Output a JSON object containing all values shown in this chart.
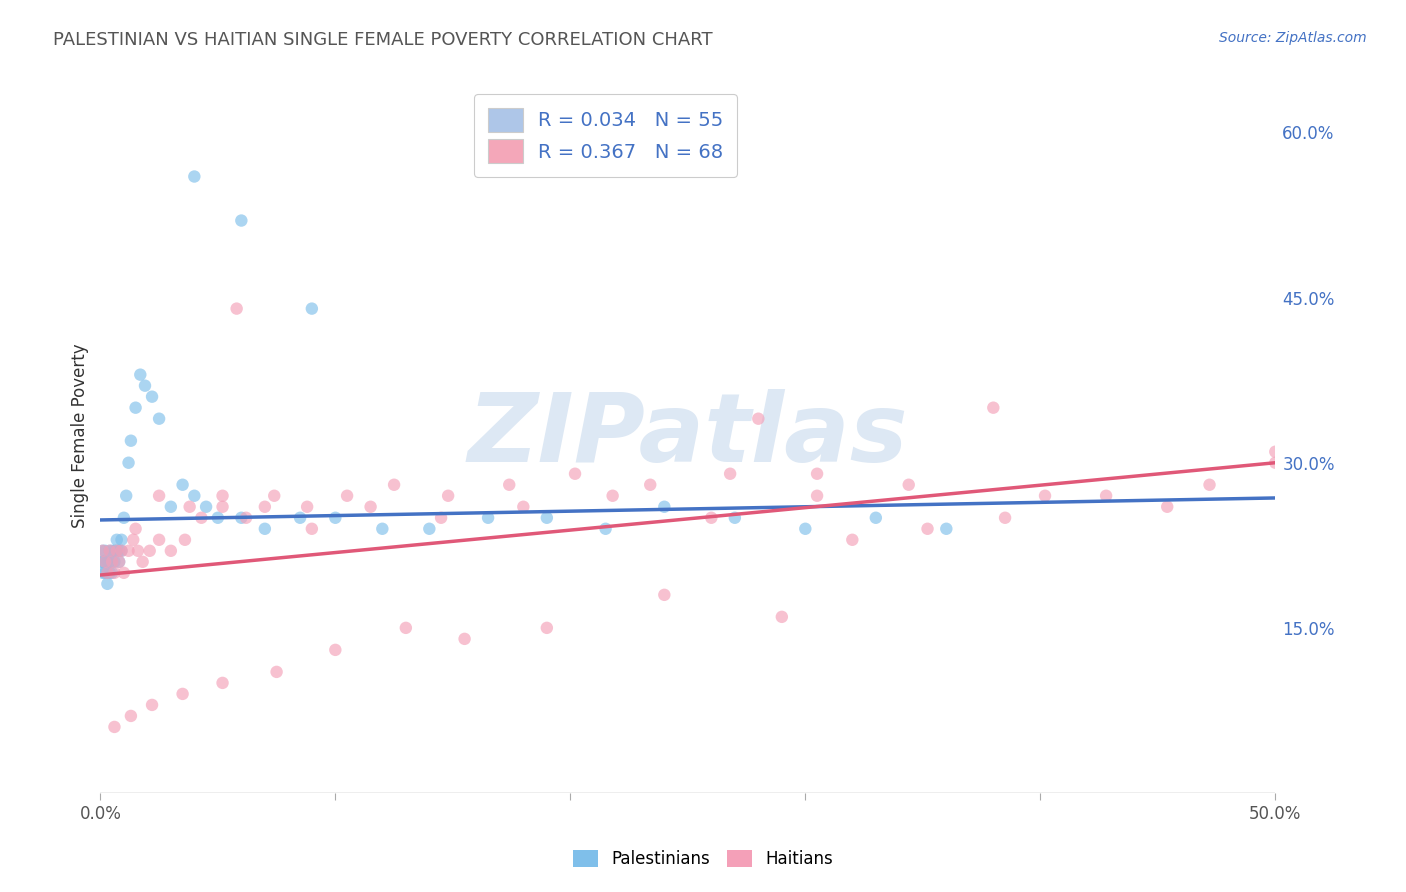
{
  "title": "PALESTINIAN VS HAITIAN SINGLE FEMALE POVERTY CORRELATION CHART",
  "source": "Source: ZipAtlas.com",
  "ylabel": "Single Female Poverty",
  "ylabel_right_labels": [
    "15.0%",
    "30.0%",
    "45.0%",
    "60.0%"
  ],
  "ylabel_right_values": [
    0.15,
    0.3,
    0.45,
    0.6
  ],
  "xlim": [
    0.0,
    0.5
  ],
  "ylim": [
    0.0,
    0.65
  ],
  "watermark": "ZIPatlas",
  "pal_color": "#7fbfea",
  "hai_color": "#f4a0b8",
  "pal_scatter_alpha": 0.65,
  "hai_scatter_alpha": 0.65,
  "pal_marker_size": 80,
  "hai_marker_size": 80,
  "palestinians_x": [
    0.001,
    0.001,
    0.001,
    0.001,
    0.002,
    0.002,
    0.002,
    0.003,
    0.003,
    0.003,
    0.004,
    0.004,
    0.004,
    0.005,
    0.005,
    0.005,
    0.006,
    0.006,
    0.007,
    0.007,
    0.008,
    0.008,
    0.009,
    0.009,
    0.01,
    0.011,
    0.012,
    0.013,
    0.015,
    0.017,
    0.019,
    0.022,
    0.025,
    0.03,
    0.035,
    0.04,
    0.045,
    0.05,
    0.06,
    0.07,
    0.085,
    0.1,
    0.12,
    0.14,
    0.165,
    0.19,
    0.215,
    0.24,
    0.27,
    0.3,
    0.33,
    0.36,
    0.04,
    0.06,
    0.09
  ],
  "palestinians_y": [
    0.2,
    0.21,
    0.21,
    0.22,
    0.2,
    0.21,
    0.22,
    0.19,
    0.2,
    0.21,
    0.2,
    0.21,
    0.22,
    0.2,
    0.21,
    0.22,
    0.21,
    0.22,
    0.22,
    0.23,
    0.21,
    0.22,
    0.22,
    0.23,
    0.25,
    0.27,
    0.3,
    0.32,
    0.35,
    0.38,
    0.37,
    0.36,
    0.34,
    0.26,
    0.28,
    0.27,
    0.26,
    0.25,
    0.25,
    0.24,
    0.25,
    0.25,
    0.24,
    0.24,
    0.25,
    0.25,
    0.24,
    0.26,
    0.25,
    0.24,
    0.25,
    0.24,
    0.56,
    0.52,
    0.44
  ],
  "haitians_x": [
    0.001,
    0.002,
    0.003,
    0.004,
    0.005,
    0.006,
    0.007,
    0.008,
    0.009,
    0.01,
    0.012,
    0.014,
    0.016,
    0.018,
    0.021,
    0.025,
    0.03,
    0.036,
    0.043,
    0.052,
    0.062,
    0.074,
    0.088,
    0.105,
    0.125,
    0.148,
    0.174,
    0.202,
    0.234,
    0.268,
    0.305,
    0.344,
    0.385,
    0.428,
    0.472,
    0.5,
    0.015,
    0.025,
    0.038,
    0.052,
    0.07,
    0.09,
    0.115,
    0.145,
    0.18,
    0.218,
    0.26,
    0.305,
    0.352,
    0.402,
    0.454,
    0.5,
    0.058,
    0.38,
    0.28,
    0.24,
    0.32,
    0.29,
    0.19,
    0.155,
    0.13,
    0.1,
    0.075,
    0.052,
    0.035,
    0.022,
    0.013,
    0.006
  ],
  "haitians_y": [
    0.22,
    0.21,
    0.2,
    0.22,
    0.21,
    0.2,
    0.22,
    0.21,
    0.22,
    0.2,
    0.22,
    0.23,
    0.22,
    0.21,
    0.22,
    0.23,
    0.22,
    0.23,
    0.25,
    0.27,
    0.25,
    0.27,
    0.26,
    0.27,
    0.28,
    0.27,
    0.28,
    0.29,
    0.28,
    0.29,
    0.29,
    0.28,
    0.25,
    0.27,
    0.28,
    0.3,
    0.24,
    0.27,
    0.26,
    0.26,
    0.26,
    0.24,
    0.26,
    0.25,
    0.26,
    0.27,
    0.25,
    0.27,
    0.24,
    0.27,
    0.26,
    0.31,
    0.44,
    0.35,
    0.34,
    0.18,
    0.23,
    0.16,
    0.15,
    0.14,
    0.15,
    0.13,
    0.11,
    0.1,
    0.09,
    0.08,
    0.07,
    0.06
  ],
  "pal_trend_x": [
    0.0,
    0.5
  ],
  "pal_trend_y": [
    0.248,
    0.268
  ],
  "hai_trend_x": [
    0.0,
    0.5
  ],
  "hai_trend_y": [
    0.198,
    0.3
  ],
  "grid_color": "#cccccc",
  "trendline_pal_color": "#4472c4",
  "trendline_hai_color": "#e05878",
  "bg_color": "#ffffff",
  "legend_blue_box": "#aec6e8",
  "legend_pink_box": "#f4a7b9",
  "xticks": [
    0.0,
    0.1,
    0.2,
    0.3,
    0.4,
    0.5
  ],
  "xtick_labels_show": [
    "0.0%",
    "",
    "",
    "",
    "",
    "50.0%"
  ]
}
